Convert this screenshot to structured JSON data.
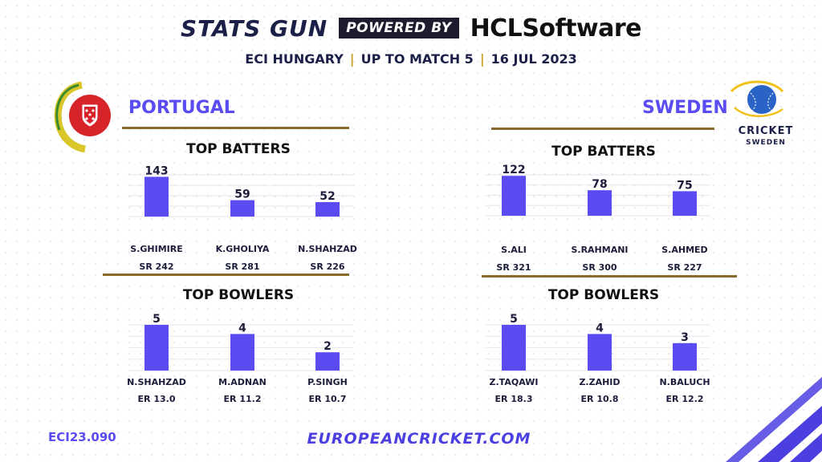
{
  "header": {
    "brand": "STATS GUN",
    "powered_by": "POWERED BY",
    "sponsor_prefix": "HCL",
    "sponsor_suffix": "Software",
    "subtitle_parts": [
      "ECI HUNGARY",
      "UP TO MATCH 5",
      "16 JUL 2023"
    ],
    "separator": "|"
  },
  "colors": {
    "bar": "#5a4cf0",
    "team_name": "#5a4cf0",
    "rule": "#8a6a2a",
    "accent_gold": "#c9a227",
    "dark": "#1c2048"
  },
  "logos": {
    "portugal": "portugal-cricket-federation-crest-icon",
    "sweden": "cricket-sweden-logo-icon",
    "sweden_text_1": "CRICKET",
    "sweden_text_2": "SWEDEN"
  },
  "teams": {
    "portugal": {
      "name": "PORTUGAL"
    },
    "sweden": {
      "name": "SWEDEN"
    }
  },
  "chart_data": [
    {
      "type": "bar",
      "title": "TOP BATTERS",
      "team": "PORTUGAL",
      "categories": [
        "S.GHIMIRE",
        "K.GHOLIYA",
        "N.SHAHZAD"
      ],
      "values": [
        143,
        59,
        52
      ],
      "sublabels": [
        "SR 242",
        "SR 281",
        "SR 226"
      ],
      "ylim": [
        0,
        150
      ]
    },
    {
      "type": "bar",
      "title": "TOP BOWLERS",
      "team": "PORTUGAL",
      "categories": [
        "N.SHAHZAD",
        "M.ADNAN",
        "P.SINGH"
      ],
      "values": [
        5,
        4,
        2
      ],
      "sublabels": [
        "ER 13.0",
        "ER 11.2",
        "ER 10.7"
      ],
      "ylim": [
        0,
        5
      ]
    },
    {
      "type": "bar",
      "title": "TOP BATTERS",
      "team": "SWEDEN",
      "categories": [
        "S.ALI",
        "S.RAHMANI",
        "S.AHMED"
      ],
      "values": [
        122,
        78,
        75
      ],
      "sublabels": [
        "SR 321",
        "SR 300",
        "SR 227"
      ],
      "ylim": [
        0,
        125
      ]
    },
    {
      "type": "bar",
      "title": "TOP BOWLERS",
      "team": "SWEDEN",
      "categories": [
        "Z.TAQAWI",
        "Z.ZAHID",
        "N.BALUCH"
      ],
      "values": [
        5,
        4,
        3
      ],
      "sublabels": [
        "ER 18.3",
        "ER 10.8",
        "ER 12.2"
      ],
      "ylim": [
        0,
        5
      ]
    }
  ],
  "footer": {
    "code": "ECI23.090",
    "url": "EUROPEANCRICKET.COM"
  }
}
